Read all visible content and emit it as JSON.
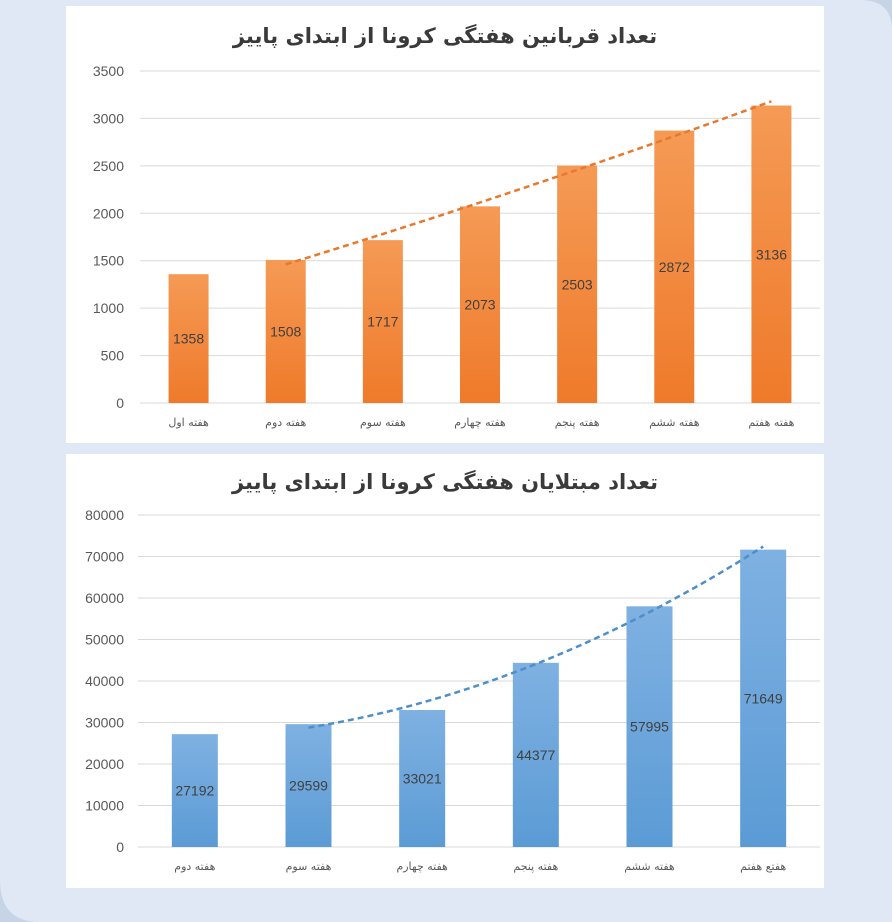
{
  "colors": {
    "orange_bar": "#ef7a2a",
    "orange_bar_light": "#f59a55",
    "orange_trend": "#e8782c",
    "blue_bar": "#5b9bd5",
    "blue_bar_light": "#7fb1e2",
    "blue_trend": "#4d8fc8",
    "grid": "#d9d9d9",
    "axis_text": "#595959",
    "value_text": "#404040"
  },
  "chart_data": [
    {
      "type": "bar",
      "title": "تعداد قربانین هفتگی کرونا از ابتدای پاییز",
      "categories": [
        "هفته اول",
        "هفته دوم",
        "هفته سوم",
        "هفته چهارم",
        "هفته پنجم",
        "هفته ششم",
        "هفته هفتم"
      ],
      "values": [
        1358,
        1508,
        1717,
        2073,
        2503,
        2872,
        3136
      ],
      "yticks": [
        "0",
        "500",
        "1000",
        "1500",
        "2000",
        "2500",
        "3000",
        "3500"
      ],
      "ylim": [
        0,
        3500
      ],
      "grid": true,
      "trendline": {
        "style": "dashed",
        "type": "polynomial",
        "start_index": 1
      },
      "data_labels": true
    },
    {
      "type": "bar",
      "title": "تعداد مبتلایان هفتگی کرونا از ابتدای پاییز",
      "categories": [
        "هفته دوم",
        "هفته سوم",
        "هفته چهارم",
        "هفته پنجم",
        "هفته ششم",
        "هفتع هفتم"
      ],
      "values": [
        27192,
        29599,
        33021,
        44377,
        57995,
        71649
      ],
      "yticks": [
        "0",
        "10000",
        "20000",
        "30000",
        "40000",
        "50000",
        "60000",
        "70000",
        "80000"
      ],
      "ylim": [
        0,
        80000
      ],
      "grid": true,
      "trendline": {
        "style": "dashed",
        "type": "polynomial",
        "start_index": 1
      },
      "data_labels": true
    }
  ]
}
